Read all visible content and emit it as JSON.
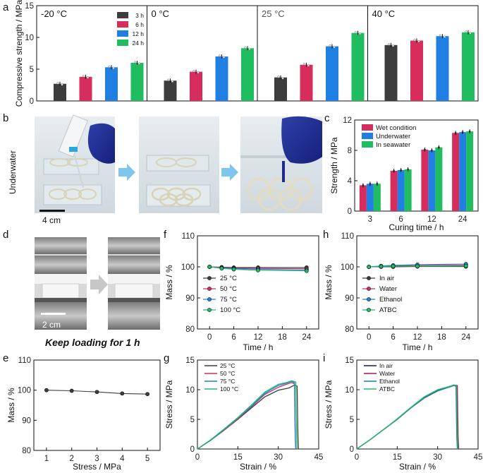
{
  "panel_labels": {
    "a": "a",
    "b": "b",
    "c": "c",
    "d": "d",
    "e": "e",
    "f": "f",
    "g": "g",
    "h": "h",
    "i": "i"
  },
  "colors": {
    "h3": "#3d3d3d",
    "h6": "#d62d5c",
    "h12": "#1f7fe3",
    "h24": "#1fbd60",
    "c25": "#3d3d3d",
    "c50": "#d62d5c",
    "c75": "#1f7fe3",
    "c100": "#1fbd60",
    "arrow": "#7ec6ee"
  },
  "photos": {
    "b_side_label": "Underwater",
    "b_scale": "4 cm",
    "d_scale": "2 cm",
    "d_caption": "Keep loading for 1 h"
  },
  "chart_data": [
    {
      "id": "a",
      "type": "bar",
      "ylabel": "Compressive strength / MPa",
      "ylim": [
        0,
        15
      ],
      "yticks": [
        "0",
        "5",
        "10",
        "15"
      ],
      "legend": [
        "3 h",
        "6 h",
        "12 h",
        "24 h"
      ],
      "panels": [
        {
          "title": "-20 °C",
          "values": [
            2.7,
            3.8,
            5.3,
            6.0
          ]
        },
        {
          "title": "0 °C",
          "values": [
            3.2,
            4.6,
            7.0,
            8.3
          ]
        },
        {
          "title": "25 °C",
          "values": [
            3.7,
            5.7,
            8.6,
            10.7
          ]
        },
        {
          "title": "40 °C",
          "values": [
            8.8,
            9.5,
            10.2,
            10.8
          ]
        }
      ]
    },
    {
      "id": "c",
      "type": "bar",
      "xlabel": "Curing time / h",
      "ylabel": "Strength / MPa",
      "ylim": [
        0,
        12
      ],
      "categories": [
        "3",
        "6",
        "12",
        "24"
      ],
      "yticks": [
        "0",
        "4",
        "8",
        "12"
      ],
      "series": [
        {
          "name": "Wet condition",
          "values": [
            3.4,
            5.3,
            8.1,
            10.3
          ]
        },
        {
          "name": "Underwater",
          "values": [
            3.6,
            5.4,
            8.0,
            10.4
          ]
        },
        {
          "name": "In seawater",
          "values": [
            3.6,
            5.5,
            8.4,
            10.5
          ]
        }
      ]
    },
    {
      "id": "e",
      "type": "line",
      "xlabel": "Stress / MPa",
      "ylabel": "Mass / %",
      "ylim": [
        80,
        110
      ],
      "xlim": [
        0.5,
        5.5
      ],
      "xticks": [
        "1",
        "2",
        "3",
        "4",
        "5"
      ],
      "yticks": [
        "80",
        "90",
        "100",
        "110"
      ],
      "x": [
        1,
        2,
        3,
        4,
        5
      ],
      "values": [
        100.0,
        99.8,
        99.4,
        98.9,
        98.7
      ]
    },
    {
      "id": "f",
      "type": "line",
      "xlabel": "Time / h",
      "ylabel": "Mass / %",
      "ylim": [
        80,
        110
      ],
      "xlim": [
        -3,
        27
      ],
      "xticks": [
        "0",
        "6",
        "12",
        "18",
        "24"
      ],
      "yticks": [
        "80",
        "90",
        "100",
        "110"
      ],
      "x": [
        0,
        3,
        6,
        12,
        24
      ],
      "series": [
        {
          "name": "25 °C",
          "values": [
            100,
            99.9,
            99.8,
            99.8,
            99.8
          ]
        },
        {
          "name": "50 °C",
          "values": [
            100,
            99.8,
            99.6,
            99.5,
            99.4
          ]
        },
        {
          "name": "75 °C",
          "values": [
            100,
            99.7,
            99.4,
            99.2,
            99.0
          ]
        },
        {
          "name": "100 °C",
          "values": [
            100,
            99.5,
            99.2,
            98.9,
            98.7
          ]
        }
      ]
    },
    {
      "id": "h",
      "type": "line",
      "xlabel": "Time / h",
      "ylabel": "Mass / %",
      "ylim": [
        80,
        110
      ],
      "xlim": [
        -3,
        27
      ],
      "xticks": [
        "0",
        "6",
        "12",
        "18",
        "24"
      ],
      "yticks": [
        "80",
        "90",
        "100",
        "110"
      ],
      "x": [
        0,
        3,
        6,
        12,
        24
      ],
      "series": [
        {
          "name": "In air",
          "values": [
            100,
            100,
            100,
            100.1,
            100.1
          ]
        },
        {
          "name": "Water",
          "values": [
            100,
            100.2,
            100.4,
            100.5,
            100.6
          ]
        },
        {
          "name": "Ethanol",
          "values": [
            100,
            100.3,
            100.5,
            100.7,
            100.9
          ]
        },
        {
          "name": "ATBC",
          "values": [
            100,
            100.1,
            100.2,
            100.2,
            100.3
          ]
        }
      ]
    },
    {
      "id": "g",
      "type": "line",
      "xlabel": "Strain / %",
      "ylabel": "Stress / MPa",
      "ylim": [
        0,
        15
      ],
      "xlim": [
        0,
        45
      ],
      "xticks": [
        "0",
        "15",
        "30",
        "45"
      ],
      "yticks": [
        "0",
        "5",
        "10",
        "15"
      ],
      "series": [
        {
          "name": "25 °C",
          "x": [
            0,
            5,
            10,
            15,
            20,
            25,
            30,
            34,
            36,
            37,
            37.3,
            37.5
          ],
          "values": [
            0,
            1.5,
            3.2,
            5.0,
            6.9,
            8.8,
            9.9,
            10.3,
            10.8,
            10.6,
            2,
            0
          ]
        },
        {
          "name": "50 °C",
          "x": [
            0,
            5,
            10,
            15,
            20,
            25,
            30,
            33,
            35,
            36,
            36.3,
            36.5
          ],
          "values": [
            0,
            1.5,
            3.2,
            5.1,
            7.1,
            9.2,
            10.4,
            10.9,
            11.2,
            11.0,
            2,
            0
          ]
        },
        {
          "name": "75 °C",
          "x": [
            0,
            5,
            10,
            15,
            20,
            25,
            30,
            33,
            35,
            36,
            36.3,
            36.5
          ],
          "values": [
            0,
            1.5,
            3.3,
            5.2,
            7.2,
            9.4,
            10.7,
            11.1,
            11.4,
            11.2,
            2,
            0
          ]
        },
        {
          "name": "100 °C",
          "x": [
            0,
            5,
            10,
            15,
            20,
            25,
            30,
            33,
            35,
            36.5,
            36.8,
            37
          ],
          "values": [
            0,
            1.6,
            3.4,
            5.3,
            7.4,
            9.6,
            10.9,
            11.2,
            11.5,
            11.3,
            2,
            0
          ]
        }
      ]
    },
    {
      "id": "i",
      "type": "line",
      "xlabel": "Strain / %",
      "ylabel": "Stress / MPa",
      "ylim": [
        0,
        15
      ],
      "xlim": [
        0,
        45
      ],
      "xticks": [
        "0",
        "15",
        "30",
        "45"
      ],
      "yticks": [
        "0",
        "5",
        "10",
        "15"
      ],
      "series": [
        {
          "name": "In air",
          "x": [
            0,
            5,
            10,
            15,
            20,
            25,
            30,
            34,
            36,
            37,
            37.3,
            37.5
          ],
          "values": [
            0,
            1.6,
            3.3,
            5.0,
            6.9,
            8.6,
            9.8,
            10.4,
            10.7,
            10.6,
            2,
            0
          ]
        },
        {
          "name": "Water",
          "x": [
            0,
            5,
            10,
            15,
            20,
            25,
            30,
            34,
            36,
            37.3,
            37.6,
            37.8
          ],
          "values": [
            0,
            1.6,
            3.3,
            5.0,
            6.9,
            8.7,
            9.9,
            10.5,
            10.8,
            10.7,
            2,
            0
          ]
        },
        {
          "name": "Ethanol",
          "x": [
            0,
            5,
            10,
            15,
            20,
            25,
            30,
            34,
            36,
            36.8,
            37.1,
            37.3
          ],
          "values": [
            0,
            1.6,
            3.3,
            5.0,
            6.9,
            8.6,
            9.8,
            10.4,
            10.7,
            10.6,
            2,
            0
          ]
        },
        {
          "name": "ATBC",
          "x": [
            0,
            5,
            10,
            15,
            20,
            25,
            30,
            34,
            36,
            37,
            37.3,
            37.5
          ],
          "values": [
            0,
            1.6,
            3.3,
            5.1,
            7.0,
            8.8,
            10.0,
            10.5,
            10.8,
            10.7,
            2,
            0
          ]
        }
      ]
    }
  ]
}
